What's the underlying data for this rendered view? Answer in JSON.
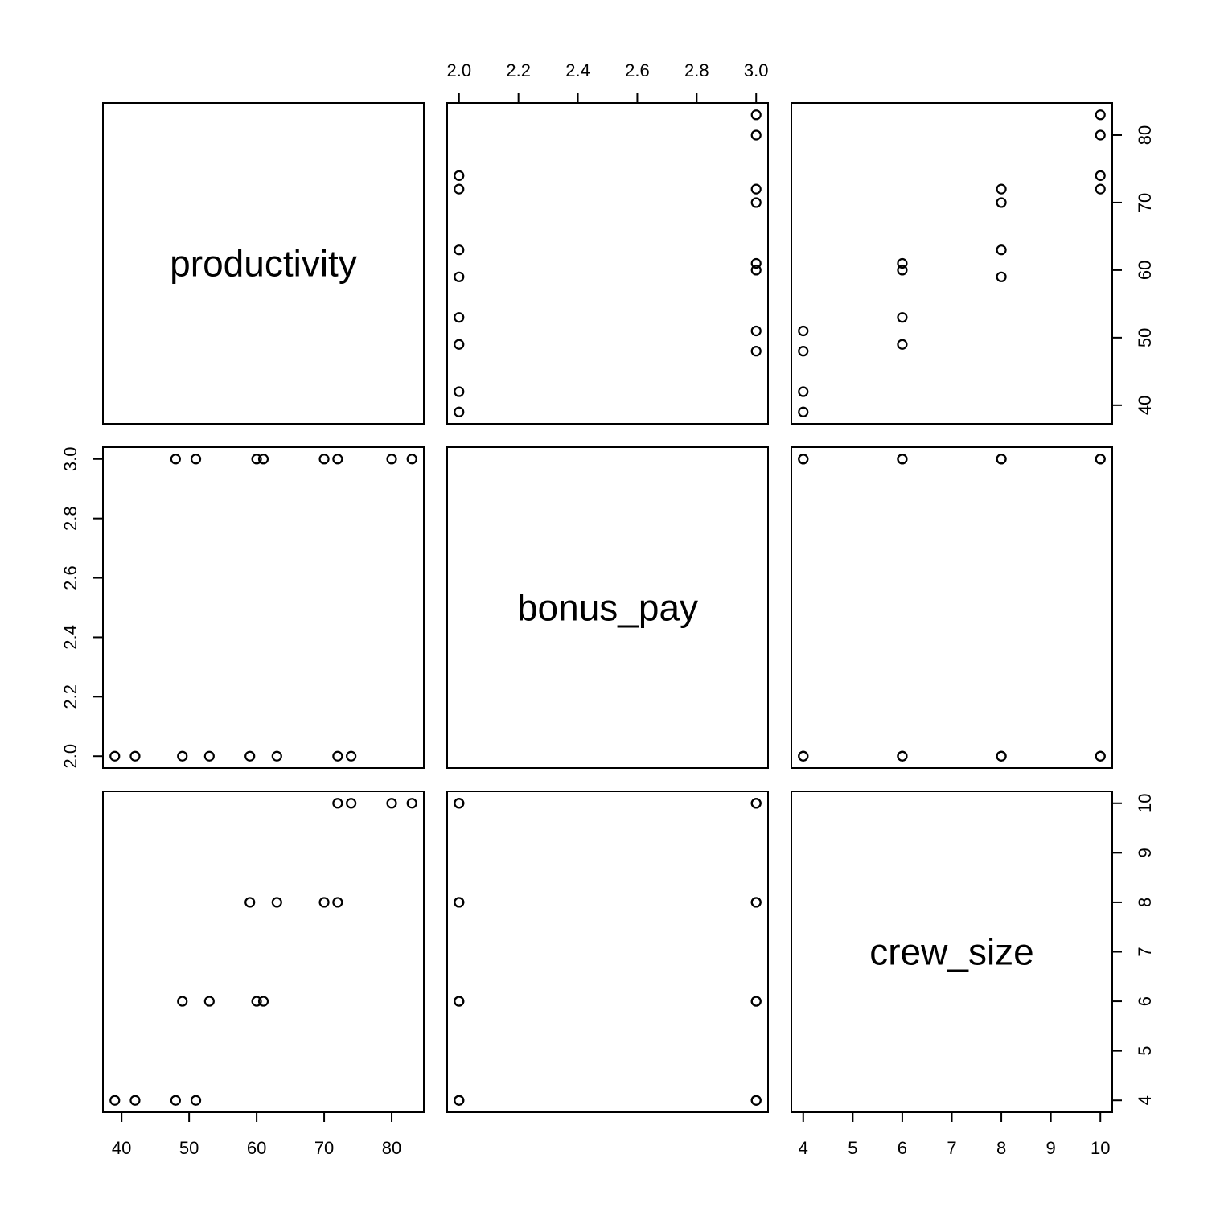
{
  "chart_data": {
    "type": "scatter",
    "subtype": "scatterplot-matrix",
    "variables": [
      {
        "name": "productivity",
        "ticks": [
          40,
          50,
          60,
          70,
          80
        ],
        "lim": [
          37.24,
          84.76
        ]
      },
      {
        "name": "bonus_pay",
        "ticks": [
          2.0,
          2.2,
          2.4,
          2.6,
          2.8,
          3.0
        ],
        "tick_labels": [
          "2.0",
          "2.2",
          "2.4",
          "2.6",
          "2.8",
          "3.0"
        ],
        "lim": [
          1.96,
          3.04
        ]
      },
      {
        "name": "crew_size",
        "ticks": [
          4,
          5,
          6,
          7,
          8,
          9,
          10
        ],
        "lim": [
          3.76,
          10.24
        ]
      }
    ],
    "observations": {
      "productivity": [
        39,
        42,
        49,
        53,
        59,
        63,
        72,
        74,
        48,
        51,
        60,
        61,
        70,
        72,
        80,
        83
      ],
      "bonus_pay": [
        2,
        2,
        2,
        2,
        2,
        2,
        2,
        2,
        3,
        3,
        3,
        3,
        3,
        3,
        3,
        3
      ],
      "crew_size": [
        4,
        4,
        6,
        6,
        8,
        8,
        10,
        10,
        4,
        4,
        6,
        6,
        8,
        8,
        10,
        10
      ]
    },
    "axes": {
      "top": [
        "bonus_pay"
      ],
      "right": [
        "productivity",
        "crew_size"
      ],
      "left": [
        "bonus_pay"
      ],
      "bottom": [
        "productivity",
        "crew_size"
      ]
    },
    "grid": false
  }
}
